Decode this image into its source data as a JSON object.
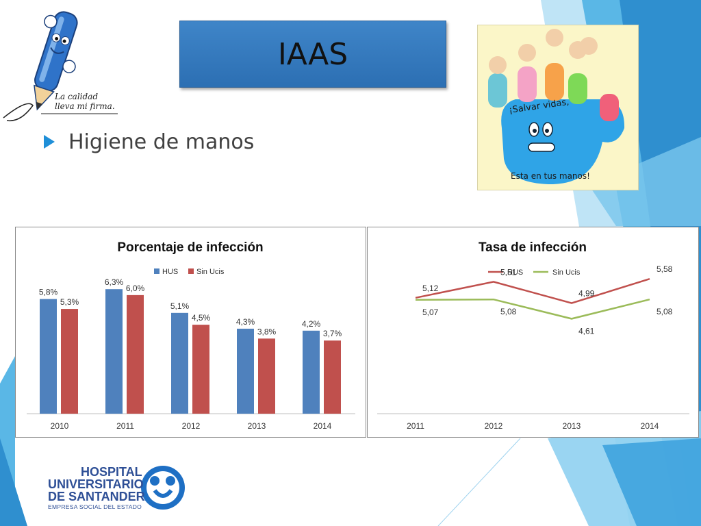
{
  "slide": {
    "title": "IAAS",
    "bullet": "Higiene de manos"
  },
  "logos": {
    "pen_caption_line1": "La calidad",
    "pen_caption_line2": "lleva mi firma.",
    "hand_text_top": "¡Salvar vidas,",
    "hand_text_bottom": "Esta en tus manos!",
    "hospital_line1": "HOSPITAL",
    "hospital_line2": "UNIVERSITARIO",
    "hospital_line3": "DE SANTANDER",
    "hospital_line4": "EMPRESA SOCIAL DEL ESTADO"
  },
  "colors": {
    "hus": "#4f81bd",
    "sin_ucis_bar": "#c0504d",
    "hus_line": "#c0504d",
    "sin_ucis_line": "#9bbb59",
    "accent_blue": "#1f8fd8"
  },
  "chart_data": [
    {
      "type": "bar",
      "title": "Porcentaje de infección",
      "categories": [
        "2010",
        "2011",
        "2012",
        "2013",
        "2014"
      ],
      "series": [
        {
          "name": "HUS",
          "values": [
            5.8,
            6.3,
            5.1,
            4.3,
            4.2
          ],
          "labels": [
            "5,8%",
            "6,3%",
            "5,1%",
            "4,3%",
            "4,2%"
          ]
        },
        {
          "name": "Sin Ucis",
          "values": [
            5.3,
            6.0,
            4.5,
            3.8,
            3.7
          ],
          "labels": [
            "5,3%",
            "6,0%",
            "4,5%",
            "3,8%",
            "3,7%"
          ]
        }
      ],
      "ylim": [
        0,
        7
      ],
      "legend": "top-center",
      "grid": false
    },
    {
      "type": "line",
      "title": "Tasa de infección",
      "categories": [
        "2011",
        "2012",
        "2013",
        "2014"
      ],
      "series": [
        {
          "name": "HUS",
          "values": [
            5.12,
            5.51,
            4.99,
            5.58
          ],
          "labels": [
            "5,12",
            "5,51",
            "4,99",
            "5,58"
          ]
        },
        {
          "name": "Sin Ucis",
          "values": [
            5.07,
            5.08,
            4.61,
            5.08
          ],
          "labels": [
            "5,07",
            "5,08",
            "4,61",
            "5,08"
          ]
        }
      ],
      "legend": "top-center",
      "grid": false
    }
  ]
}
